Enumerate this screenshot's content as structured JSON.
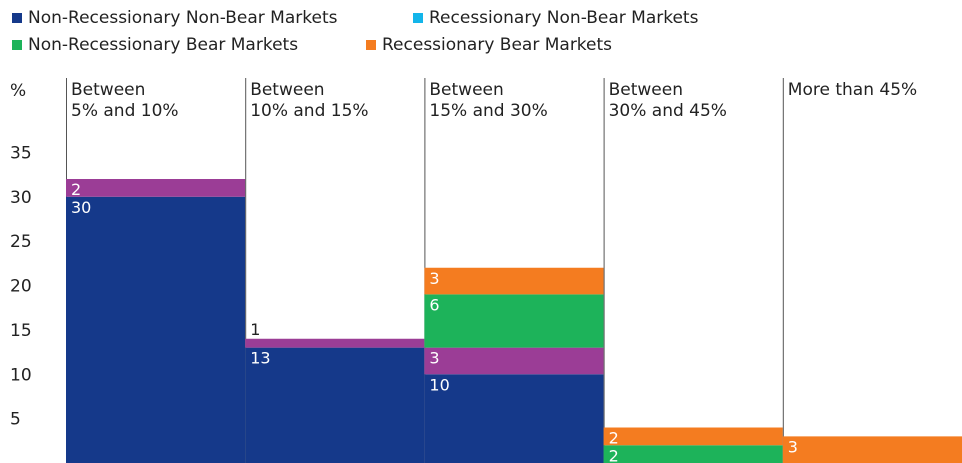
{
  "chart_data": {
    "type": "stacked_bar",
    "y_label": "%",
    "categories": [
      "Between\n5% and 10%",
      "Between\n10% and 15%",
      "Between\n15% and 30%",
      "Between\n30% and 45%",
      "More than 45%"
    ],
    "series": [
      {
        "name": "Non-Recessionary Non-Bear Markets",
        "color": "#15398a",
        "values": [
          30,
          13,
          10,
          null,
          null
        ]
      },
      {
        "name": "Recessionary Non-Bear Markets",
        "color": "#9b3d96",
        "legend_color": "#13b5ea",
        "values": [
          2,
          1,
          3,
          null,
          null
        ]
      },
      {
        "name": "Non-Recessionary Bear Markets",
        "color": "#1db35a",
        "values": [
          null,
          null,
          6,
          2,
          null
        ]
      },
      {
        "name": "Recessionary Bear Markets",
        "color": "#f47c20",
        "values": [
          null,
          null,
          3,
          2,
          3
        ]
      }
    ],
    "ylim": [
      0,
      40
    ],
    "yticks": [
      5,
      10,
      15,
      20,
      25,
      30,
      35
    ]
  }
}
